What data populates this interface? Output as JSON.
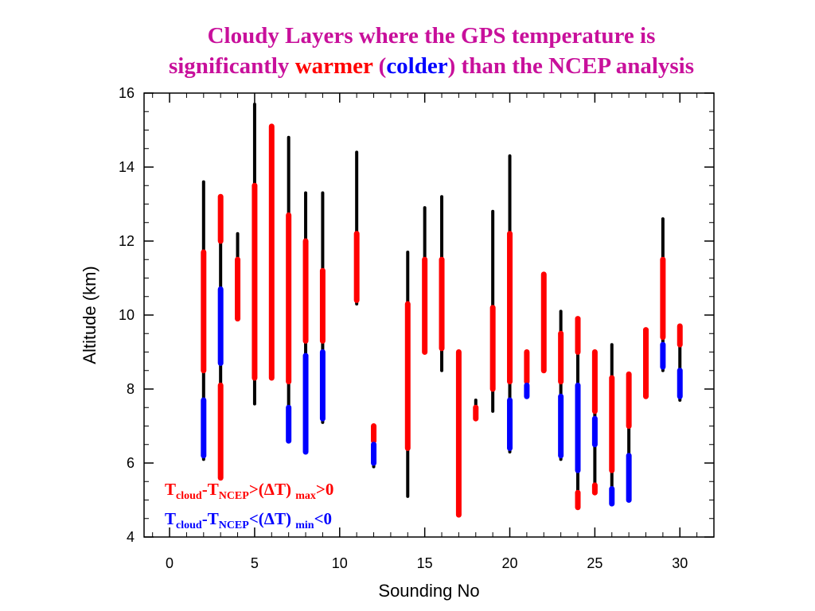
{
  "chart_data": {
    "type": "range-bar",
    "title": {
      "line1": "Cloudy Layers where the GPS temperature is",
      "line2_prefix": "significantly ",
      "warmer": "warmer",
      "open_paren": " (",
      "colder": "colder",
      "line2_suffix": ") than the NCEP analysis"
    },
    "xlabel": "Sounding No",
    "ylabel": "Altitude (km)",
    "xlim": [
      -1.5,
      32
    ],
    "ylim": [
      4,
      16
    ],
    "xticks": [
      0,
      5,
      10,
      15,
      20,
      25,
      30
    ],
    "yticks": [
      4,
      6,
      8,
      10,
      12,
      14,
      16
    ],
    "colors": {
      "cloud": "#000000",
      "warmer": "#ff0000",
      "colder": "#0000ff",
      "title": "#c8109b"
    },
    "legend": {
      "warmer": {
        "T": "T",
        "cloud": "cloud",
        "dash": "-T",
        "ncep": "NCEP",
        "rel": ">(ΔT) ",
        "sub": "max",
        "cmp": ">0"
      },
      "colder": {
        "T": "T",
        "cloud": "cloud",
        "dash": "-T",
        "ncep": "NCEP",
        "rel": "<(ΔT) ",
        "sub": "min",
        "cmp": "<0"
      }
    },
    "cloud_layers": [
      {
        "x": 2,
        "bottom": 6.1,
        "top": 13.6
      },
      {
        "x": 3,
        "bottom": 5.6,
        "top": 13.2
      },
      {
        "x": 4,
        "bottom": 9.9,
        "top": 12.2
      },
      {
        "x": 5,
        "bottom": 7.6,
        "top": 15.7
      },
      {
        "x": 6,
        "bottom": 8.3,
        "top": 15.1
      },
      {
        "x": 7,
        "bottom": 6.6,
        "top": 14.8
      },
      {
        "x": 8,
        "bottom": 6.3,
        "top": 13.3
      },
      {
        "x": 9,
        "bottom": 7.1,
        "top": 13.3
      },
      {
        "x": 11,
        "bottom": 10.3,
        "top": 14.4
      },
      {
        "x": 12,
        "bottom": 5.9,
        "top": 7.0
      },
      {
        "x": 14,
        "bottom": 5.1,
        "top": 11.7
      },
      {
        "x": 15,
        "bottom": 9.0,
        "top": 12.9
      },
      {
        "x": 16,
        "bottom": 8.5,
        "top": 13.2
      },
      {
        "x": 17,
        "bottom": 4.6,
        "top": 9.0
      },
      {
        "x": 18,
        "bottom": 7.2,
        "top": 7.7
      },
      {
        "x": 19,
        "bottom": 7.4,
        "top": 12.8
      },
      {
        "x": 20,
        "bottom": 6.3,
        "top": 14.3
      },
      {
        "x": 21,
        "bottom": 7.8,
        "top": 9.0
      },
      {
        "x": 22,
        "bottom": 8.5,
        "top": 11.1
      },
      {
        "x": 23,
        "bottom": 6.1,
        "top": 10.1
      },
      {
        "x": 24,
        "bottom": 4.8,
        "top": 9.9
      },
      {
        "x": 25,
        "bottom": 5.2,
        "top": 9.0
      },
      {
        "x": 26,
        "bottom": 4.9,
        "top": 9.2
      },
      {
        "x": 27,
        "bottom": 5.0,
        "top": 8.4
      },
      {
        "x": 28,
        "bottom": 7.8,
        "top": 9.6
      },
      {
        "x": 29,
        "bottom": 8.5,
        "top": 12.6
      },
      {
        "x": 30,
        "bottom": 7.7,
        "top": 9.7
      }
    ],
    "warmer_layers": [
      {
        "x": 2,
        "bottom": 8.5,
        "top": 11.7
      },
      {
        "x": 3,
        "bottom": 12.0,
        "top": 13.2
      },
      {
        "x": 3,
        "bottom": 5.6,
        "top": 8.1
      },
      {
        "x": 4,
        "bottom": 9.9,
        "top": 11.5
      },
      {
        "x": 5,
        "bottom": 8.3,
        "top": 13.5
      },
      {
        "x": 6,
        "bottom": 8.3,
        "top": 15.1
      },
      {
        "x": 7,
        "bottom": 8.2,
        "top": 12.7
      },
      {
        "x": 8,
        "bottom": 9.3,
        "top": 12.0
      },
      {
        "x": 9,
        "bottom": 9.3,
        "top": 11.2
      },
      {
        "x": 11,
        "bottom": 10.4,
        "top": 12.2
      },
      {
        "x": 12,
        "bottom": 6.6,
        "top": 7.0
      },
      {
        "x": 14,
        "bottom": 6.4,
        "top": 10.3
      },
      {
        "x": 15,
        "bottom": 9.0,
        "top": 11.5
      },
      {
        "x": 16,
        "bottom": 9.1,
        "top": 11.5
      },
      {
        "x": 17,
        "bottom": 4.6,
        "top": 9.0
      },
      {
        "x": 18,
        "bottom": 7.2,
        "top": 7.5
      },
      {
        "x": 19,
        "bottom": 8.0,
        "top": 10.2
      },
      {
        "x": 20,
        "bottom": 8.2,
        "top": 12.2
      },
      {
        "x": 21,
        "bottom": 8.2,
        "top": 9.0
      },
      {
        "x": 22,
        "bottom": 8.5,
        "top": 11.1
      },
      {
        "x": 23,
        "bottom": 8.2,
        "top": 9.5
      },
      {
        "x": 24,
        "bottom": 9.0,
        "top": 9.9
      },
      {
        "x": 24,
        "bottom": 4.8,
        "top": 5.2
      },
      {
        "x": 25,
        "bottom": 7.4,
        "top": 9.0
      },
      {
        "x": 25,
        "bottom": 5.2,
        "top": 5.4
      },
      {
        "x": 26,
        "bottom": 5.8,
        "top": 8.3
      },
      {
        "x": 27,
        "bottom": 7.0,
        "top": 8.4
      },
      {
        "x": 28,
        "bottom": 7.8,
        "top": 9.6
      },
      {
        "x": 29,
        "bottom": 9.4,
        "top": 11.5
      },
      {
        "x": 30,
        "bottom": 9.2,
        "top": 9.7
      }
    ],
    "colder_layers": [
      {
        "x": 2,
        "bottom": 6.2,
        "top": 7.7
      },
      {
        "x": 3,
        "bottom": 8.7,
        "top": 10.7
      },
      {
        "x": 7,
        "bottom": 6.6,
        "top": 7.5
      },
      {
        "x": 8,
        "bottom": 6.3,
        "top": 8.9
      },
      {
        "x": 9,
        "bottom": 7.2,
        "top": 9.0
      },
      {
        "x": 12,
        "bottom": 6.0,
        "top": 6.5
      },
      {
        "x": 20,
        "bottom": 6.4,
        "top": 7.7
      },
      {
        "x": 21,
        "bottom": 7.8,
        "top": 8.1
      },
      {
        "x": 23,
        "bottom": 6.2,
        "top": 7.8
      },
      {
        "x": 24,
        "bottom": 5.8,
        "top": 8.1
      },
      {
        "x": 25,
        "bottom": 6.5,
        "top": 7.2
      },
      {
        "x": 26,
        "bottom": 4.9,
        "top": 5.3
      },
      {
        "x": 27,
        "bottom": 5.0,
        "top": 6.2
      },
      {
        "x": 29,
        "bottom": 8.6,
        "top": 9.2
      },
      {
        "x": 30,
        "bottom": 7.8,
        "top": 8.5
      }
    ]
  }
}
